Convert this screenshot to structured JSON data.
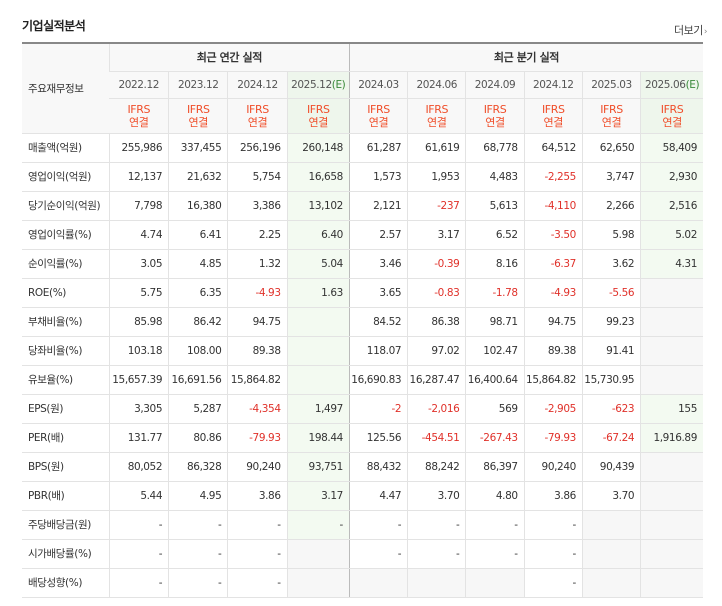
{
  "section_title": "기업실적분석",
  "more_label": "더보기",
  "more_arrow": "›",
  "header": {
    "row_label": "주요재무정보",
    "annual_group": "최근 연간 실적",
    "quarter_group": "최근 분기 실적",
    "annual_periods": [
      "2022.12",
      "2023.12",
      "2024.12",
      "2025.12"
    ],
    "annual_estimate_mark": "(E)",
    "quarter_periods": [
      "2024.03",
      "2024.06",
      "2024.09",
      "2024.12",
      "2025.03",
      "2025.06"
    ],
    "quarter_estimate_mark": "(E)",
    "basis_line1": "IFRS",
    "basis_line2": "연결"
  },
  "rows": [
    {
      "label": "매출액(억원)",
      "values": [
        "255,986",
        "337,455",
        "256,196",
        "260,148",
        "61,287",
        "61,619",
        "68,778",
        "64,512",
        "62,650",
        "58,409"
      ]
    },
    {
      "label": "영업이익(억원)",
      "values": [
        "12,137",
        "21,632",
        "5,754",
        "16,658",
        "1,573",
        "1,953",
        "4,483",
        "-2,255",
        "3,747",
        "2,930"
      ]
    },
    {
      "label": "당기순이익(억원)",
      "values": [
        "7,798",
        "16,380",
        "3,386",
        "13,102",
        "2,121",
        "-237",
        "5,613",
        "-4,110",
        "2,266",
        "2,516"
      ]
    },
    {
      "label": "영업이익률(%)",
      "values": [
        "4.74",
        "6.41",
        "2.25",
        "6.40",
        "2.57",
        "3.17",
        "6.52",
        "-3.50",
        "5.98",
        "5.02"
      ]
    },
    {
      "label": "순이익률(%)",
      "values": [
        "3.05",
        "4.85",
        "1.32",
        "5.04",
        "3.46",
        "-0.39",
        "8.16",
        "-6.37",
        "3.62",
        "4.31"
      ]
    },
    {
      "label": "ROE(%)",
      "values": [
        "5.75",
        "6.35",
        "-4.93",
        "1.63",
        "3.65",
        "-0.83",
        "-1.78",
        "-4.93",
        "-5.56",
        ""
      ]
    },
    {
      "label": "부채비율(%)",
      "values": [
        "85.98",
        "86.42",
        "94.75",
        "",
        "84.52",
        "86.38",
        "98.71",
        "94.75",
        "99.23",
        ""
      ]
    },
    {
      "label": "당좌비율(%)",
      "values": [
        "103.18",
        "108.00",
        "89.38",
        "",
        "118.07",
        "97.02",
        "102.47",
        "89.38",
        "91.41",
        ""
      ]
    },
    {
      "label": "유보율(%)",
      "values": [
        "15,657.39",
        "16,691.56",
        "15,864.82",
        "",
        "16,690.83",
        "16,287.47",
        "16,400.64",
        "15,864.82",
        "15,730.95",
        ""
      ]
    },
    {
      "label": "EPS(원)",
      "values": [
        "3,305",
        "5,287",
        "-4,354",
        "1,497",
        "-2",
        "-2,016",
        "569",
        "-2,905",
        "-623",
        "155"
      ]
    },
    {
      "label": "PER(배)",
      "values": [
        "131.77",
        "80.86",
        "-79.93",
        "198.44",
        "125.56",
        "-454.51",
        "-267.43",
        "-79.93",
        "-67.24",
        "1,916.89"
      ]
    },
    {
      "label": "BPS(원)",
      "values": [
        "80,052",
        "86,328",
        "90,240",
        "93,751",
        "88,432",
        "88,242",
        "86,397",
        "90,240",
        "90,439",
        ""
      ]
    },
    {
      "label": "PBR(배)",
      "values": [
        "5.44",
        "4.95",
        "3.86",
        "3.17",
        "4.47",
        "3.70",
        "4.80",
        "3.86",
        "3.70",
        ""
      ]
    },
    {
      "label": "주당배당금(원)",
      "values": [
        "-",
        "-",
        "-",
        "-",
        "-",
        "-",
        "-",
        "-",
        "",
        ""
      ]
    },
    {
      "label": "시가배당률(%)",
      "values": [
        "-",
        "-",
        "-",
        "",
        "-",
        "-",
        "-",
        "-",
        "",
        ""
      ]
    },
    {
      "label": "배당성향(%)",
      "values": [
        "-",
        "-",
        "-",
        "",
        "",
        "",
        "",
        "-",
        "",
        ""
      ]
    }
  ]
}
